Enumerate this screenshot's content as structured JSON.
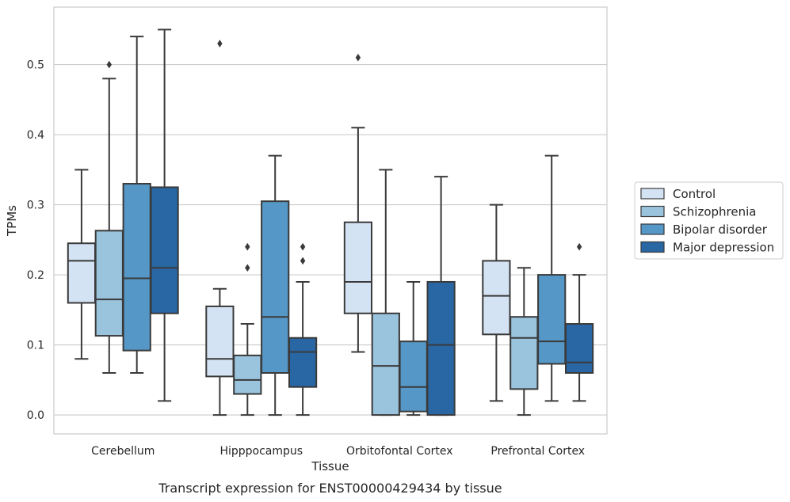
{
  "caption": "Transcript expression for ENST00000429434 by tissue",
  "chart_data": {
    "type": "box",
    "xlabel": "Tissue",
    "ylabel": "TPMs",
    "ylim": [
      -0.027,
      0.582
    ],
    "yticks": [
      0.0,
      0.1,
      0.2,
      0.3,
      0.4,
      0.5
    ],
    "ytick_labels": [
      "0.0",
      "0.1",
      "0.2",
      "0.3",
      "0.4",
      "0.5"
    ],
    "categories": [
      "Cerebellum",
      "Hipppocampus",
      "Orbitofontal Cortex",
      "Prefrontal Cortex"
    ],
    "grid": "horizontal",
    "legend_position": "right",
    "series": [
      {
        "name": "Control",
        "color": "#d4e3f3",
        "boxes": [
          {
            "whislo": 0.08,
            "q1": 0.16,
            "med": 0.22,
            "q3": 0.245,
            "whishi": 0.35,
            "fliers": []
          },
          {
            "whislo": 0.0,
            "q1": 0.055,
            "med": 0.08,
            "q3": 0.155,
            "whishi": 0.18,
            "fliers": [
              0.53
            ]
          },
          {
            "whislo": 0.09,
            "q1": 0.145,
            "med": 0.19,
            "q3": 0.275,
            "whishi": 0.41,
            "fliers": [
              0.51
            ]
          },
          {
            "whislo": 0.02,
            "q1": 0.115,
            "med": 0.17,
            "q3": 0.22,
            "whishi": 0.3,
            "fliers": []
          }
        ]
      },
      {
        "name": "Schizophrenia",
        "color": "#9ac4dd",
        "boxes": [
          {
            "whislo": 0.06,
            "q1": 0.113,
            "med": 0.165,
            "q3": 0.263,
            "whishi": 0.48,
            "fliers": [
              0.5
            ]
          },
          {
            "whislo": 0.0,
            "q1": 0.03,
            "med": 0.05,
            "q3": 0.085,
            "whishi": 0.13,
            "fliers": [
              0.24,
              0.21
            ]
          },
          {
            "whislo": 0.0,
            "q1": 0.0,
            "med": 0.07,
            "q3": 0.145,
            "whishi": 0.35,
            "fliers": []
          },
          {
            "whislo": 0.0,
            "q1": 0.037,
            "med": 0.11,
            "q3": 0.14,
            "whishi": 0.21,
            "fliers": []
          }
        ]
      },
      {
        "name": "Bipolar disorder",
        "color": "#5597c6",
        "boxes": [
          {
            "whislo": 0.06,
            "q1": 0.092,
            "med": 0.195,
            "q3": 0.33,
            "whishi": 0.54,
            "fliers": []
          },
          {
            "whislo": 0.0,
            "q1": 0.06,
            "med": 0.14,
            "q3": 0.305,
            "whishi": 0.37,
            "fliers": []
          },
          {
            "whislo": 0.0,
            "q1": 0.005,
            "med": 0.04,
            "q3": 0.105,
            "whishi": 0.19,
            "fliers": []
          },
          {
            "whislo": 0.02,
            "q1": 0.073,
            "med": 0.105,
            "q3": 0.2,
            "whishi": 0.37,
            "fliers": []
          }
        ]
      },
      {
        "name": "Major depression",
        "color": "#2866a4",
        "boxes": [
          {
            "whislo": 0.02,
            "q1": 0.145,
            "med": 0.21,
            "q3": 0.325,
            "whishi": 0.55,
            "fliers": []
          },
          {
            "whislo": 0.0,
            "q1": 0.04,
            "med": 0.09,
            "q3": 0.11,
            "whishi": 0.19,
            "fliers": [
              0.24,
              0.22
            ]
          },
          {
            "whislo": 0.0,
            "q1": 0.0,
            "med": 0.1,
            "q3": 0.19,
            "whishi": 0.34,
            "fliers": []
          },
          {
            "whislo": 0.02,
            "q1": 0.06,
            "med": 0.075,
            "q3": 0.13,
            "whishi": 0.2,
            "fliers": [
              0.24
            ]
          }
        ]
      }
    ]
  }
}
